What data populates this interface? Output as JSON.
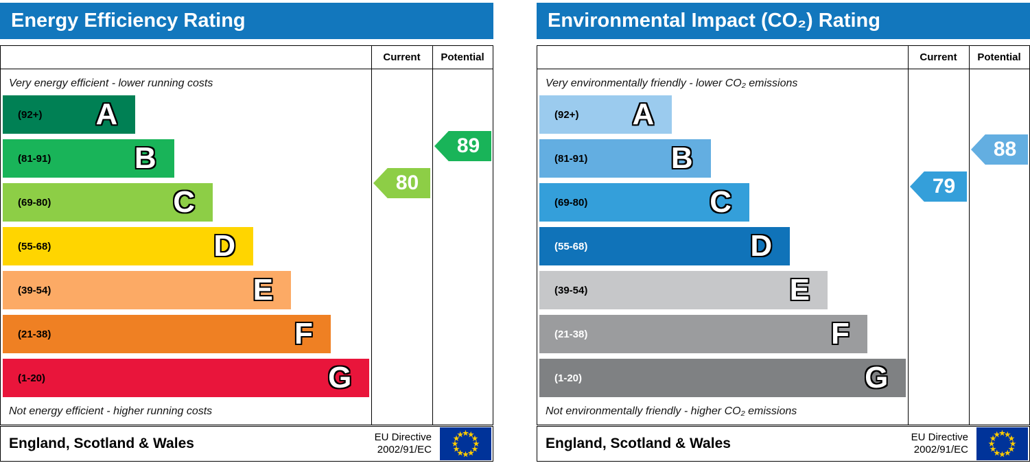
{
  "eu_flag": {
    "field_color": "#003399",
    "star_color": "#ffcc00"
  },
  "chart_data": [
    {
      "type": "bar",
      "title": "Energy Efficiency Rating",
      "header_color": "#1277bd",
      "columns": [
        "Current",
        "Potential"
      ],
      "top_caption": "Very energy efficient - lower running costs",
      "bottom_caption": "Not energy efficient - higher running costs",
      "region": "England, Scotland & Wales",
      "directive": [
        "EU Directive",
        "2002/91/EC"
      ],
      "bands": [
        {
          "letter": "A",
          "range_label": "(92+)",
          "lo": 92,
          "hi": 100,
          "color": "#008054",
          "width_pct": 36,
          "range_text_color": "#000000"
        },
        {
          "letter": "B",
          "range_label": "(81-91)",
          "lo": 81,
          "hi": 91,
          "color": "#19b459",
          "width_pct": 46.5,
          "range_text_color": "#000000"
        },
        {
          "letter": "C",
          "range_label": "(69-80)",
          "lo": 69,
          "hi": 80,
          "color": "#8dce46",
          "width_pct": 57,
          "range_text_color": "#000000"
        },
        {
          "letter": "D",
          "range_label": "(55-68)",
          "lo": 55,
          "hi": 68,
          "color": "#ffd500",
          "width_pct": 68,
          "range_text_color": "#000000"
        },
        {
          "letter": "E",
          "range_label": "(39-54)",
          "lo": 39,
          "hi": 54,
          "color": "#fcaa65",
          "width_pct": 78.2,
          "range_text_color": "#000000"
        },
        {
          "letter": "F",
          "range_label": "(21-38)",
          "lo": 21,
          "hi": 38,
          "color": "#ef8023",
          "width_pct": 89,
          "range_text_color": "#000000"
        },
        {
          "letter": "G",
          "range_label": "(1-20)",
          "lo": 1,
          "hi": 20,
          "color": "#e9153b",
          "width_pct": 99.5,
          "range_text_color": "#000000"
        }
      ],
      "current": {
        "value": 80,
        "color": "#8dce46"
      },
      "potential": {
        "value": 89,
        "color": "#19b459"
      }
    },
    {
      "type": "bar",
      "title": "Environmental Impact (CO₂) Rating",
      "header_color": "#1277bd",
      "columns": [
        "Current",
        "Potential"
      ],
      "top_caption": "Very environmentally friendly - lower CO₂ emissions",
      "bottom_caption": "Not environmentally friendly - higher CO₂ emissions",
      "region": "England, Scotland & Wales",
      "directive": [
        "EU Directive",
        "2002/91/EC"
      ],
      "bands": [
        {
          "letter": "A",
          "range_label": "(92+)",
          "lo": 92,
          "hi": 100,
          "color": "#9bcbee",
          "width_pct": 36,
          "range_text_color": "#000000"
        },
        {
          "letter": "B",
          "range_label": "(81-91)",
          "lo": 81,
          "hi": 91,
          "color": "#63aee1",
          "width_pct": 46.5,
          "range_text_color": "#000000"
        },
        {
          "letter": "C",
          "range_label": "(69-80)",
          "lo": 69,
          "hi": 80,
          "color": "#349fda",
          "width_pct": 57,
          "range_text_color": "#000000"
        },
        {
          "letter": "D",
          "range_label": "(55-68)",
          "lo": 55,
          "hi": 68,
          "color": "#1073b9",
          "width_pct": 68,
          "range_text_color": "#ffffff"
        },
        {
          "letter": "E",
          "range_label": "(39-54)",
          "lo": 39,
          "hi": 54,
          "color": "#c6c7c9",
          "width_pct": 78.2,
          "range_text_color": "#000000"
        },
        {
          "letter": "F",
          "range_label": "(21-38)",
          "lo": 21,
          "hi": 38,
          "color": "#9b9c9e",
          "width_pct": 89,
          "range_text_color": "#ffffff"
        },
        {
          "letter": "G",
          "range_label": "(1-20)",
          "lo": 1,
          "hi": 20,
          "color": "#7f8183",
          "width_pct": 99.5,
          "range_text_color": "#ffffff"
        }
      ],
      "current": {
        "value": 79,
        "color": "#349fda"
      },
      "potential": {
        "value": 88,
        "color": "#63aee1"
      }
    }
  ]
}
